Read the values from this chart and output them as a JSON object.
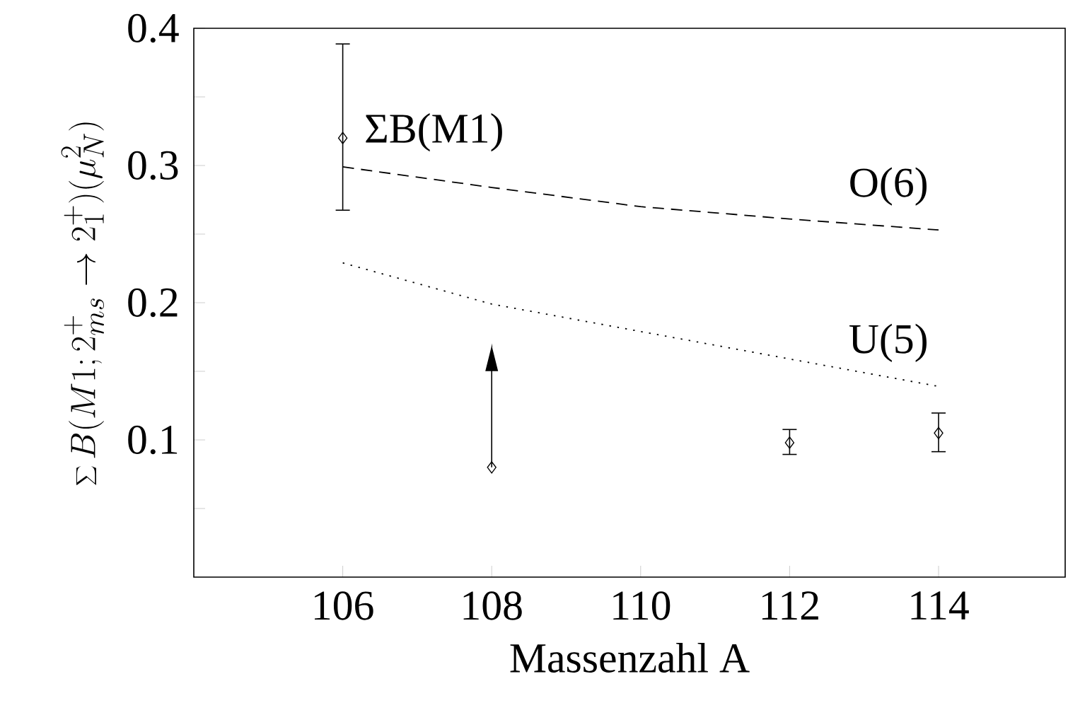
{
  "chart_data": {
    "type": "scatter",
    "xlabel": "Massenzahl A",
    "ylabel": "\\sum B(M1;2^+_{ms}\\to 2^+_1)(\\mu_N^2)",
    "xlim": [
      104,
      115.7
    ],
    "ylim": [
      0,
      0.4
    ],
    "xticks": [
      106,
      108,
      110,
      112,
      114
    ],
    "yticks": [
      {
        "value": 0.05,
        "label": null
      },
      0.1,
      {
        "value": 0.15,
        "label": null
      },
      0.2,
      {
        "value": 0.25,
        "label": null
      },
      0.3,
      {
        "value": 0.35,
        "label": null
      },
      0.4
    ],
    "series": [
      {
        "name": "ΣB(M1)",
        "marker": "diamond",
        "color": "#000000",
        "x": [
          106,
          108,
          112,
          114
        ],
        "values": [
          0.32,
          0.08,
          0.098,
          0.105
        ],
        "errors": [
          [
            0.267,
            0.389
          ],
          [
            0.08,
            0.167
          ],
          [
            0.089,
            0.108
          ],
          [
            0.091,
            0.12
          ]
        ]
      },
      {
        "name": "O(6)",
        "type": "line",
        "line_style": "dashed",
        "color": "#000000",
        "x": [
          106,
          108,
          110,
          112,
          114
        ],
        "values": [
          0.299,
          0.284,
          0.27,
          0.261,
          0.253
        ]
      },
      {
        "name": "U(5)",
        "type": "line",
        "line_style": "dotted",
        "color": "#000000",
        "x": [
          106,
          108,
          110,
          112,
          114
        ],
        "values": [
          0.229,
          0.199,
          0.179,
          0.159,
          0.139
        ]
      }
    ]
  }
}
